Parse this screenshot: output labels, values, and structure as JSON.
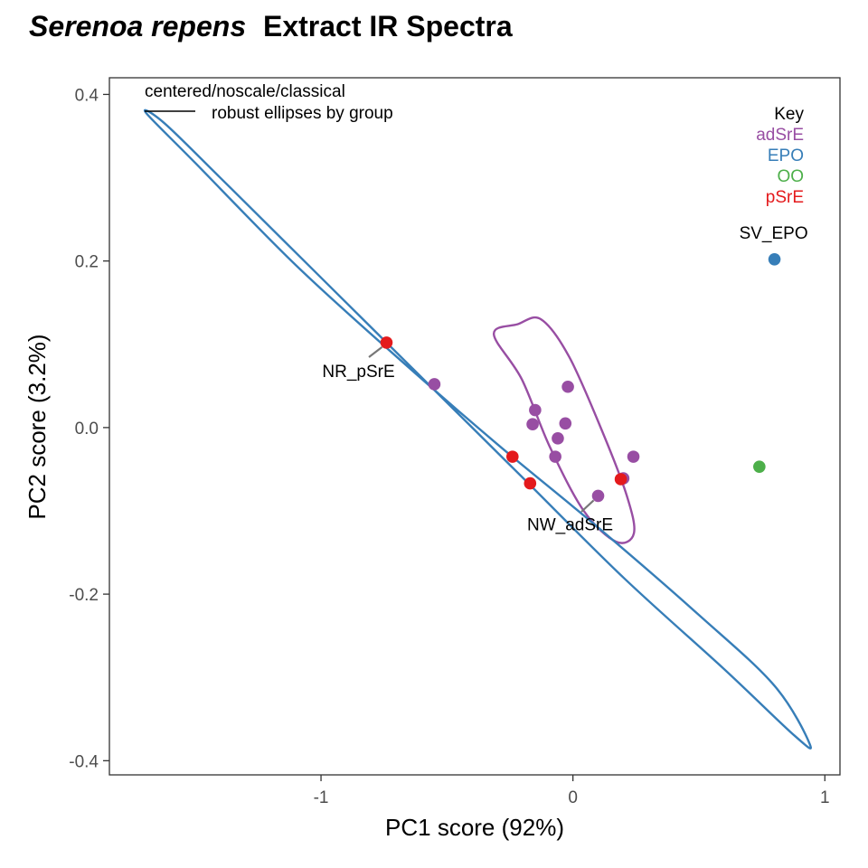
{
  "chart_data": {
    "type": "scatter",
    "title_italic": "Serenoa repens",
    "title_rest": "Extract IR Spectra",
    "xlabel": "PC1 score (92%)",
    "ylabel": "PC2 score (3.2%)",
    "xlim": [
      -1.84,
      1.06
    ],
    "ylim": [
      -0.417,
      0.42
    ],
    "x_ticks": [
      -1,
      0,
      1
    ],
    "y_ticks": [
      0.4,
      0.2,
      0.0,
      -0.2,
      -0.4
    ],
    "x_tick_labels": [
      "-1",
      "0",
      "1"
    ],
    "y_tick_labels": [
      "0.4",
      "0.2",
      "0.0",
      "-0.2",
      "-0.4"
    ],
    "grid": false,
    "annotation": {
      "line1": "centered/noscale/classical",
      "line2": "robust ellipses by group"
    },
    "legend": {
      "title": "Key",
      "placement": "top-right",
      "entries": [
        {
          "label": "adSrE",
          "color": "#984EA3"
        },
        {
          "label": "EPO",
          "color": "#377EB8"
        },
        {
          "label": "OO",
          "color": "#4DAF4A"
        },
        {
          "label": "pSrE",
          "color": "#E41A1C"
        }
      ]
    },
    "series": [
      {
        "group": "adSrE",
        "color": "#984EA3",
        "points": [
          {
            "x": -0.55,
            "y": 0.052
          },
          {
            "x": -0.15,
            "y": 0.021
          },
          {
            "x": -0.16,
            "y": 0.004
          },
          {
            "x": -0.02,
            "y": 0.049
          },
          {
            "x": -0.03,
            "y": 0.005
          },
          {
            "x": -0.06,
            "y": -0.013
          },
          {
            "x": -0.07,
            "y": -0.035
          },
          {
            "x": 0.1,
            "y": -0.082
          },
          {
            "x": 0.2,
            "y": -0.061
          },
          {
            "x": 0.24,
            "y": -0.035
          }
        ]
      },
      {
        "group": "EPO",
        "color": "#377EB8",
        "points": [
          {
            "x": 0.8,
            "y": 0.202
          }
        ]
      },
      {
        "group": "OO",
        "color": "#4DAF4A",
        "points": [
          {
            "x": 0.74,
            "y": -0.047
          }
        ]
      },
      {
        "group": "pSrE",
        "color": "#E41A1C",
        "points": [
          {
            "x": -0.74,
            "y": 0.102
          },
          {
            "x": -0.24,
            "y": -0.035
          },
          {
            "x": -0.17,
            "y": -0.067
          },
          {
            "x": 0.19,
            "y": -0.062
          }
        ]
      }
    ],
    "point_labels": [
      {
        "text": "NR_pSrE",
        "x": -0.74,
        "y": 0.102
      },
      {
        "text": "NW_adSrE",
        "x": 0.1,
        "y": -0.082
      },
      {
        "text": "SV_EPO",
        "x": 0.8,
        "y": 0.202
      }
    ],
    "ellipses": [
      {
        "group": "adSrE",
        "color": "#984EA3",
        "points": [
          [
            -0.22,
            0.124
          ],
          [
            -0.127,
            0.13
          ],
          [
            -0.015,
            0.085
          ],
          [
            0.117,
            -0.005
          ],
          [
            0.214,
            -0.082
          ],
          [
            0.242,
            -0.127
          ],
          [
            0.171,
            -0.137
          ],
          [
            0.043,
            -0.1
          ],
          [
            -0.092,
            -0.023
          ],
          [
            -0.203,
            0.058
          ],
          [
            -0.314,
            0.112
          ]
        ]
      },
      {
        "group": "EPO",
        "color": "#377EB8",
        "points": [
          [
            -1.695,
            0.378
          ],
          [
            -1.5,
            0.318
          ],
          [
            -1.1,
            0.195
          ],
          [
            -0.7,
            0.085
          ],
          [
            -0.3,
            -0.02
          ],
          [
            0.1,
            -0.12
          ],
          [
            0.5,
            -0.225
          ],
          [
            0.8,
            -0.31
          ],
          [
            0.94,
            -0.38
          ],
          [
            0.88,
            -0.37
          ],
          [
            0.6,
            -0.29
          ],
          [
            0.2,
            -0.18
          ],
          [
            -0.2,
            -0.06
          ],
          [
            -0.6,
            0.06
          ],
          [
            -1.0,
            0.18
          ],
          [
            -1.4,
            0.3
          ],
          [
            -1.62,
            0.365
          ]
        ]
      }
    ]
  }
}
